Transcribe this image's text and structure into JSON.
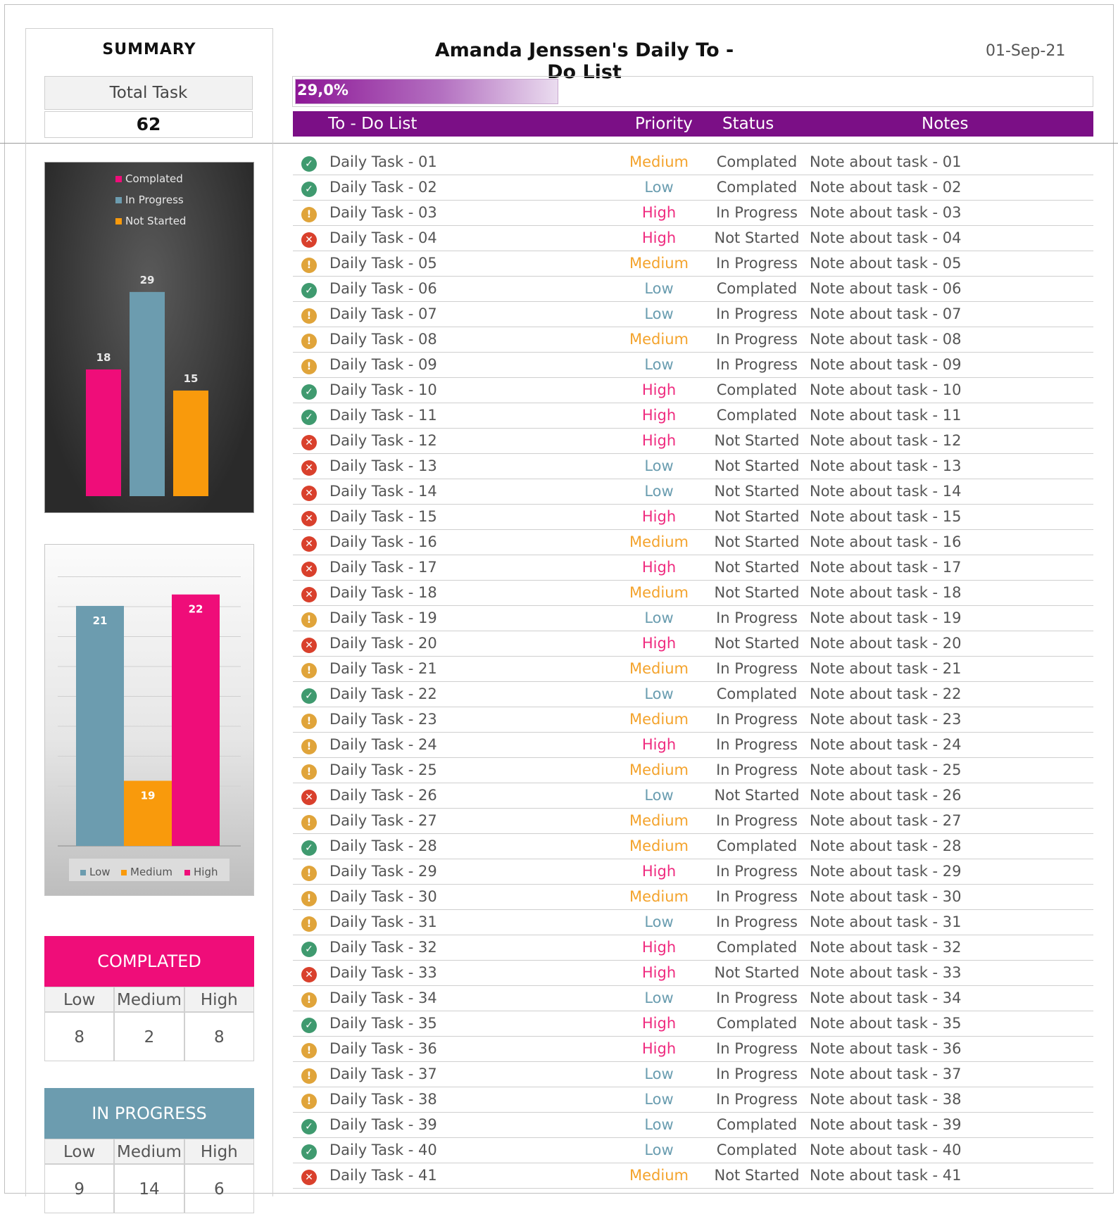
{
  "summary": {
    "title": "SUMMARY",
    "total_label": "Total Task",
    "total_value": "62"
  },
  "header": {
    "title": "Amanda Jenssen's Daily To - Do List",
    "date": "01-Sep-21",
    "progress_text": "29,0%",
    "progress_fraction": 0.29
  },
  "columns": {
    "task": "To - Do List",
    "priority": "Priority",
    "status": "Status",
    "notes": "Notes"
  },
  "colors": {
    "purple": "#7b0f86",
    "pink": "#ef0d79",
    "teal": "#6c9caf",
    "orange": "#f99a0c",
    "low_text": "#6a9db0",
    "medium_text": "#f4a32c",
    "high_text": "#ef2b7f",
    "icon_completed": "#3f9a6f",
    "icon_progress": "#e0a43a",
    "icon_not_started": "#d9402c"
  },
  "chart_data": [
    {
      "type": "bar",
      "categories": [
        "Complated",
        "In Progress",
        "Not Started"
      ],
      "values": [
        18,
        29,
        15
      ],
      "colors": [
        "#ef0d79",
        "#6c9caf",
        "#f99a0c"
      ],
      "legend": [
        "Complated",
        "In Progress",
        "Not Started"
      ],
      "legend_position": "top",
      "ylim": [
        0,
        30
      ],
      "grid": false
    },
    {
      "type": "bar",
      "categories": [
        "Low",
        "Medium",
        "High"
      ],
      "values": [
        21,
        19,
        22
      ],
      "colors": [
        "#6c9caf",
        "#f99a0c",
        "#ef0d79"
      ],
      "legend": [
        "Low",
        "Medium",
        "High"
      ],
      "legend_position": "bottom",
      "ylim": [
        0,
        24
      ],
      "grid": true
    }
  ],
  "stats": {
    "completed": {
      "title": "COMPLATED",
      "labels": [
        "Low",
        "Medium",
        "High"
      ],
      "values": [
        "8",
        "2",
        "8"
      ]
    },
    "in_progress": {
      "title": "IN PROGRESS",
      "labels": [
        "Low",
        "Medium",
        "High"
      ],
      "values": [
        "9",
        "14",
        "6"
      ]
    }
  },
  "tasks": [
    {
      "name": "Daily Task - 01",
      "priority": "Medium",
      "status": "Complated",
      "note": "Note about task - 01"
    },
    {
      "name": "Daily Task - 02",
      "priority": "Low",
      "status": "Complated",
      "note": "Note about task - 02"
    },
    {
      "name": "Daily Task - 03",
      "priority": "High",
      "status": "In Progress",
      "note": "Note about task - 03"
    },
    {
      "name": "Daily Task - 04",
      "priority": "High",
      "status": "Not Started",
      "note": "Note about task - 04"
    },
    {
      "name": "Daily Task - 05",
      "priority": "Medium",
      "status": "In Progress",
      "note": "Note about task - 05"
    },
    {
      "name": "Daily Task - 06",
      "priority": "Low",
      "status": "Complated",
      "note": "Note about task - 06"
    },
    {
      "name": "Daily Task - 07",
      "priority": "Low",
      "status": "In Progress",
      "note": "Note about task - 07"
    },
    {
      "name": "Daily Task - 08",
      "priority": "Medium",
      "status": "In Progress",
      "note": "Note about task - 08"
    },
    {
      "name": "Daily Task - 09",
      "priority": "Low",
      "status": "In Progress",
      "note": "Note about task - 09"
    },
    {
      "name": "Daily Task - 10",
      "priority": "High",
      "status": "Complated",
      "note": "Note about task - 10"
    },
    {
      "name": "Daily Task - 11",
      "priority": "High",
      "status": "Complated",
      "note": "Note about task - 11"
    },
    {
      "name": "Daily Task - 12",
      "priority": "High",
      "status": "Not Started",
      "note": "Note about task - 12"
    },
    {
      "name": "Daily Task - 13",
      "priority": "Low",
      "status": "Not Started",
      "note": "Note about task - 13"
    },
    {
      "name": "Daily Task - 14",
      "priority": "Low",
      "status": "Not Started",
      "note": "Note about task - 14"
    },
    {
      "name": "Daily Task - 15",
      "priority": "High",
      "status": "Not Started",
      "note": "Note about task - 15"
    },
    {
      "name": "Daily Task - 16",
      "priority": "Medium",
      "status": "Not Started",
      "note": "Note about task - 16"
    },
    {
      "name": "Daily Task - 17",
      "priority": "High",
      "status": "Not Started",
      "note": "Note about task - 17"
    },
    {
      "name": "Daily Task - 18",
      "priority": "Medium",
      "status": "Not Started",
      "note": "Note about task - 18"
    },
    {
      "name": "Daily Task - 19",
      "priority": "Low",
      "status": "In Progress",
      "note": "Note about task - 19"
    },
    {
      "name": "Daily Task - 20",
      "priority": "High",
      "status": "Not Started",
      "note": "Note about task - 20"
    },
    {
      "name": "Daily Task - 21",
      "priority": "Medium",
      "status": "In Progress",
      "note": "Note about task - 21"
    },
    {
      "name": "Daily Task - 22",
      "priority": "Low",
      "status": "Complated",
      "note": "Note about task - 22"
    },
    {
      "name": "Daily Task - 23",
      "priority": "Medium",
      "status": "In Progress",
      "note": "Note about task - 23"
    },
    {
      "name": "Daily Task - 24",
      "priority": "High",
      "status": "In Progress",
      "note": "Note about task - 24"
    },
    {
      "name": "Daily Task - 25",
      "priority": "Medium",
      "status": "In Progress",
      "note": "Note about task - 25"
    },
    {
      "name": "Daily Task - 26",
      "priority": "Low",
      "status": "Not Started",
      "note": "Note about task - 26"
    },
    {
      "name": "Daily Task - 27",
      "priority": "Medium",
      "status": "In Progress",
      "note": "Note about task - 27"
    },
    {
      "name": "Daily Task - 28",
      "priority": "Medium",
      "status": "Complated",
      "note": "Note about task - 28"
    },
    {
      "name": "Daily Task - 29",
      "priority": "High",
      "status": "In Progress",
      "note": "Note about task - 29"
    },
    {
      "name": "Daily Task - 30",
      "priority": "Medium",
      "status": "In Progress",
      "note": "Note about task - 30"
    },
    {
      "name": "Daily Task - 31",
      "priority": "Low",
      "status": "In Progress",
      "note": "Note about task - 31"
    },
    {
      "name": "Daily Task - 32",
      "priority": "High",
      "status": "Complated",
      "note": "Note about task - 32"
    },
    {
      "name": "Daily Task - 33",
      "priority": "High",
      "status": "Not Started",
      "note": "Note about task - 33"
    },
    {
      "name": "Daily Task - 34",
      "priority": "Low",
      "status": "In Progress",
      "note": "Note about task - 34"
    },
    {
      "name": "Daily Task - 35",
      "priority": "High",
      "status": "Complated",
      "note": "Note about task - 35"
    },
    {
      "name": "Daily Task - 36",
      "priority": "High",
      "status": "In Progress",
      "note": "Note about task - 36"
    },
    {
      "name": "Daily Task - 37",
      "priority": "Low",
      "status": "In Progress",
      "note": "Note about task - 37"
    },
    {
      "name": "Daily Task - 38",
      "priority": "Low",
      "status": "In Progress",
      "note": "Note about task - 38"
    },
    {
      "name": "Daily Task - 39",
      "priority": "Low",
      "status": "Complated",
      "note": "Note about task - 39"
    },
    {
      "name": "Daily Task - 40",
      "priority": "Low",
      "status": "Complated",
      "note": "Note about task - 40"
    },
    {
      "name": "Daily Task - 41",
      "priority": "Medium",
      "status": "Not Started",
      "note": "Note about task - 41"
    }
  ]
}
